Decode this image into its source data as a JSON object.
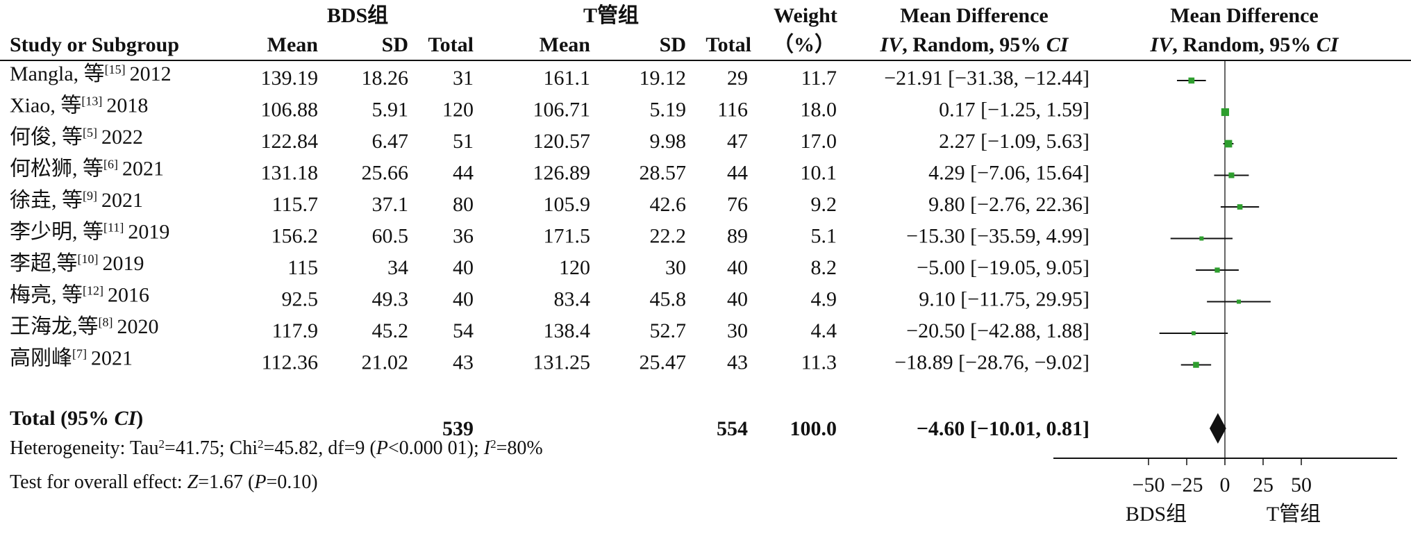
{
  "headers": {
    "group1": "BDS组",
    "group2": "T管组",
    "weight": "Weight",
    "weight_unit": "（%）",
    "md_left": "Mean Difference",
    "md_right": "Mean Difference",
    "study": "Study or Subgroup",
    "mean": "Mean",
    "sd": "SD",
    "total": "Total",
    "method_iv": "IV",
    "method_rest": ", Random, 95% ",
    "method_ci": "CI"
  },
  "chart_data": {
    "type": "forest",
    "axis": {
      "xlim": [
        -75,
        75
      ],
      "ticks": [
        -50,
        -25,
        0,
        25,
        50
      ],
      "tick_labels": [
        "−50",
        "−25",
        "0",
        "25",
        "50"
      ],
      "left_label": "BDS组",
      "right_label": "T管组"
    },
    "colors": {
      "marker": "#2e9e2e",
      "ci_line": "#111111",
      "diamond": "#111111"
    },
    "studies": [
      {
        "name": "Mangla, 等",
        "ref": "[15]",
        "year": "2012",
        "mean1": "139.19",
        "sd1": "18.26",
        "n1": "31",
        "mean2": "161.1",
        "sd2": "19.12",
        "n2": "29",
        "weight": "11.7",
        "md_text": "−21.91 [−31.38, −12.44]",
        "md": -21.91,
        "lo": -31.38,
        "hi": -12.44
      },
      {
        "name": "Xiao, 等",
        "ref": "[13]",
        "year": "2018",
        "mean1": "106.88",
        "sd1": "5.91",
        "n1": "120",
        "mean2": "106.71",
        "sd2": "5.19",
        "n2": "116",
        "weight": "18.0",
        "md_text": "0.17 [−1.25, 1.59]",
        "md": 0.17,
        "lo": -1.25,
        "hi": 1.59
      },
      {
        "name": "何俊, 等",
        "ref": "[5]",
        "year": "2022",
        "mean1": "122.84",
        "sd1": "6.47",
        "n1": "51",
        "mean2": "120.57",
        "sd2": "9.98",
        "n2": "47",
        "weight": "17.0",
        "md_text": "2.27 [−1.09, 5.63]",
        "md": 2.27,
        "lo": -1.09,
        "hi": 5.63
      },
      {
        "name": "何松狮, 等",
        "ref": "[6]",
        "year": "2021",
        "mean1": "131.18",
        "sd1": "25.66",
        "n1": "44",
        "mean2": "126.89",
        "sd2": "28.57",
        "n2": "44",
        "weight": "10.1",
        "md_text": "4.29 [−7.06, 15.64]",
        "md": 4.29,
        "lo": -7.06,
        "hi": 15.64
      },
      {
        "name": "徐垚, 等",
        "ref": "[9]",
        "year": "2021",
        "mean1": "115.7",
        "sd1": "37.1",
        "n1": "80",
        "mean2": "105.9",
        "sd2": "42.6",
        "n2": "76",
        "weight": "9.2",
        "md_text": "9.80 [−2.76, 22.36]",
        "md": 9.8,
        "lo": -2.76,
        "hi": 22.36
      },
      {
        "name": "李少明, 等",
        "ref": "[11]",
        "year": "2019",
        "mean1": "156.2",
        "sd1": "60.5",
        "n1": "36",
        "mean2": "171.5",
        "sd2": "22.2",
        "n2": "89",
        "weight": "5.1",
        "md_text": "−15.30 [−35.59, 4.99]",
        "md": -15.3,
        "lo": -35.59,
        "hi": 4.99
      },
      {
        "name": "李超,等",
        "ref": "[10]",
        "year": "2019",
        "mean1": "115",
        "sd1": "34",
        "n1": "40",
        "mean2": "120",
        "sd2": "30",
        "n2": "40",
        "weight": "8.2",
        "md_text": "−5.00 [−19.05, 9.05]",
        "md": -5.0,
        "lo": -19.05,
        "hi": 9.05
      },
      {
        "name": "梅亮, 等",
        "ref": "[12]",
        "year": "2016",
        "mean1": "92.5",
        "sd1": "49.3",
        "n1": "40",
        "mean2": "83.4",
        "sd2": "45.8",
        "n2": "40",
        "weight": "4.9",
        "md_text": "9.10 [−11.75, 29.95]",
        "md": 9.1,
        "lo": -11.75,
        "hi": 29.95
      },
      {
        "name": "王海龙,等",
        "ref": "[8]",
        "year": "2020",
        "mean1": "117.9",
        "sd1": "45.2",
        "n1": "54",
        "mean2": "138.4",
        "sd2": "52.7",
        "n2": "30",
        "weight": "4.4",
        "md_text": "−20.50 [−42.88, 1.88]",
        "md": -20.5,
        "lo": -42.88,
        "hi": 1.88
      },
      {
        "name": "高刚峰",
        "ref": "[7]",
        "year": "2021",
        "mean1": "112.36",
        "sd1": "21.02",
        "n1": "43",
        "mean2": "131.25",
        "sd2": "25.47",
        "n2": "43",
        "weight": "11.3",
        "md_text": "−18.89 [−28.76, −9.02]",
        "md": -18.89,
        "lo": -28.76,
        "hi": -9.02
      }
    ],
    "total": {
      "label_main": "Total (95% ",
      "label_ci": "CI",
      "label_end": ")",
      "n1": "539",
      "n2": "554",
      "weight": "100.0",
      "md_text": "−4.60 [−10.01, 0.81]",
      "md": -4.6,
      "lo": -10.01,
      "hi": 0.81
    },
    "heterogeneity": {
      "p1": "Heterogeneity: Tau",
      "p2": "=41.75; Chi",
      "p3": "=45.82, df=9 (",
      "p4": "P",
      "p5": "<0.000 01); ",
      "p6": "I",
      "p7": "=80%"
    },
    "overall_effect": {
      "p1": "Test for overall effect: ",
      "p2": "Z",
      "p3": "=1.67 (",
      "p4": "P",
      "p5": "=0.10)"
    }
  }
}
